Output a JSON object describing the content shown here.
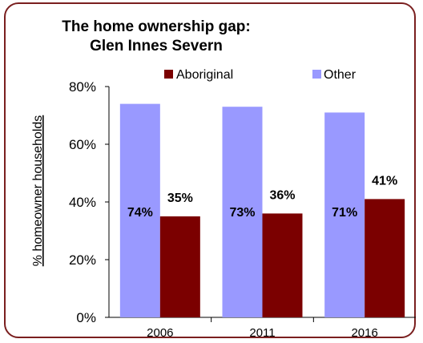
{
  "chart_data": {
    "type": "bar",
    "title_line1": "The home ownership gap:",
    "title_line2": "Glen Innes Severn",
    "xlabel": "",
    "ylabel": "% homeowner households",
    "ylim": [
      0,
      80
    ],
    "yticks": [
      "0%",
      "20%",
      "40%",
      "60%",
      "80%"
    ],
    "ytick_values": [
      0,
      20,
      40,
      60,
      80
    ],
    "categories": [
      "2006",
      "2011",
      "2016"
    ],
    "series": [
      {
        "name": "Aboriginal",
        "color": "#7b0000",
        "values": [
          35,
          36,
          41
        ],
        "labels": [
          "35%",
          "36%",
          "41%"
        ]
      },
      {
        "name": "Other",
        "color": "#9999ff",
        "values": [
          74,
          73,
          71
        ],
        "labels": [
          "74%",
          "73%",
          "71%"
        ]
      }
    ],
    "legend_position": "top",
    "grid": false
  }
}
